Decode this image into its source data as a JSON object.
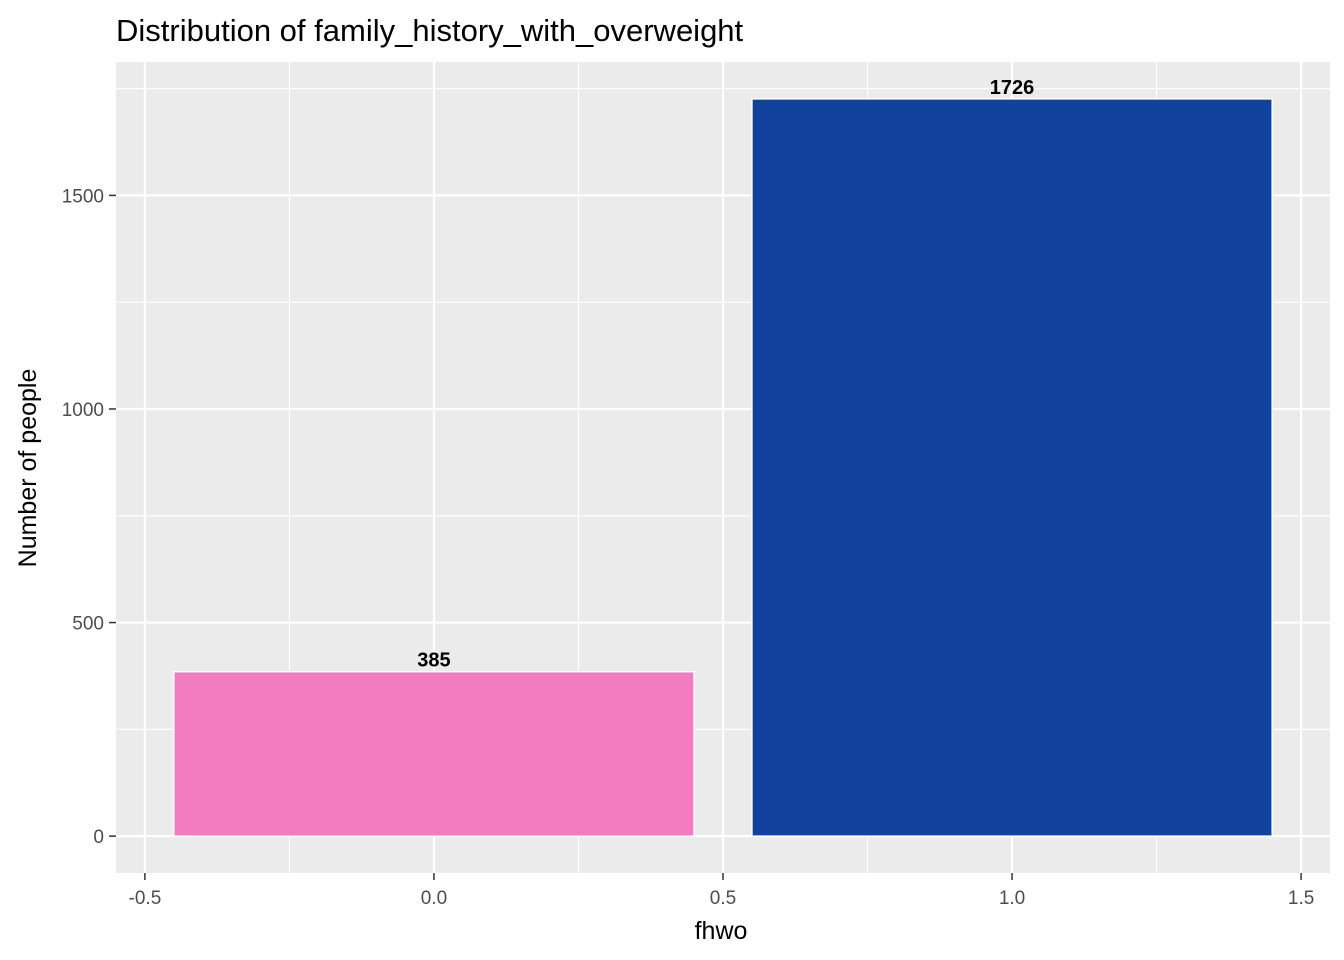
{
  "chart_data": {
    "type": "bar",
    "title": "Distribution of family_history_with_overweight",
    "xlabel": "fhwo",
    "ylabel": "Number of people",
    "x": [
      0,
      1
    ],
    "values": [
      385,
      1726
    ],
    "data_labels": [
      "385",
      "1726"
    ],
    "bar_width": 0.9,
    "bar_colors": [
      "#F37BC0",
      "#10429E"
    ],
    "bar_outline_color": "#FFFFFF",
    "xlim": [
      -0.55,
      1.55
    ],
    "ylim": [
      -86.3,
      1812.3
    ],
    "x_ticks": [
      -0.5,
      0.0,
      0.5,
      1.0,
      1.5
    ],
    "x_tick_labels": [
      "-0.5",
      "0.0",
      "0.5",
      "1.0",
      "1.5"
    ],
    "y_ticks": [
      0,
      500,
      1000,
      1500
    ],
    "y_tick_labels": [
      "0",
      "500",
      "1000",
      "1500"
    ],
    "grid": true,
    "panel_background": "#EBEBEB",
    "grid_color": "#FFFFFF",
    "legend": "none"
  }
}
